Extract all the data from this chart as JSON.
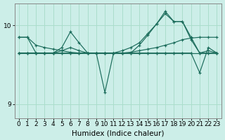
{
  "xlabel": "Humidex (Indice chaleur)",
  "bg_color": "#cceee8",
  "grid_color": "#aaddcc",
  "line_color": "#1a6b5a",
  "xlim": [
    -0.5,
    23.5
  ],
  "ylim": [
    8.82,
    10.28
  ],
  "yticks": [
    9,
    10
  ],
  "xticks": [
    0,
    1,
    2,
    3,
    4,
    5,
    6,
    7,
    8,
    9,
    10,
    11,
    12,
    13,
    14,
    15,
    16,
    17,
    18,
    19,
    20,
    21,
    22,
    23
  ],
  "lines": [
    [
      9.85,
      9.85,
      9.75,
      9.72,
      9.7,
      9.68,
      9.66,
      9.65,
      9.65,
      9.65,
      9.65,
      9.65,
      9.65,
      9.66,
      9.68,
      9.7,
      9.72,
      9.75,
      9.78,
      9.82,
      9.84,
      9.85,
      9.85,
      9.85
    ],
    [
      9.85,
      9.85,
      9.65,
      9.65,
      9.65,
      9.72,
      9.92,
      9.78,
      9.65,
      9.65,
      9.65,
      9.65,
      9.65,
      9.65,
      9.75,
      9.88,
      10.02,
      10.15,
      10.05,
      10.05,
      9.82,
      9.65,
      9.65,
      9.65
    ],
    [
      9.65,
      9.65,
      9.65,
      9.65,
      9.65,
      9.68,
      9.72,
      9.68,
      9.65,
      9.65,
      9.65,
      9.65,
      9.68,
      9.72,
      9.78,
      9.9,
      10.02,
      10.18,
      10.05,
      10.05,
      9.85,
      9.65,
      9.68,
      9.65
    ],
    [
      9.65,
      9.65,
      9.65,
      9.65,
      9.65,
      9.65,
      9.65,
      9.65,
      9.65,
      9.65,
      9.15,
      9.65,
      9.65,
      9.65,
      9.65,
      9.65,
      9.65,
      9.65,
      9.65,
      9.65,
      9.65,
      9.4,
      9.72,
      9.65
    ],
    [
      9.65,
      9.65,
      9.65,
      9.65,
      9.65,
      9.65,
      9.65,
      9.65,
      9.65,
      9.65,
      9.65,
      9.65,
      9.65,
      9.65,
      9.65,
      9.65,
      9.65,
      9.65,
      9.65,
      9.65,
      9.65,
      9.65,
      9.65,
      9.65
    ]
  ]
}
